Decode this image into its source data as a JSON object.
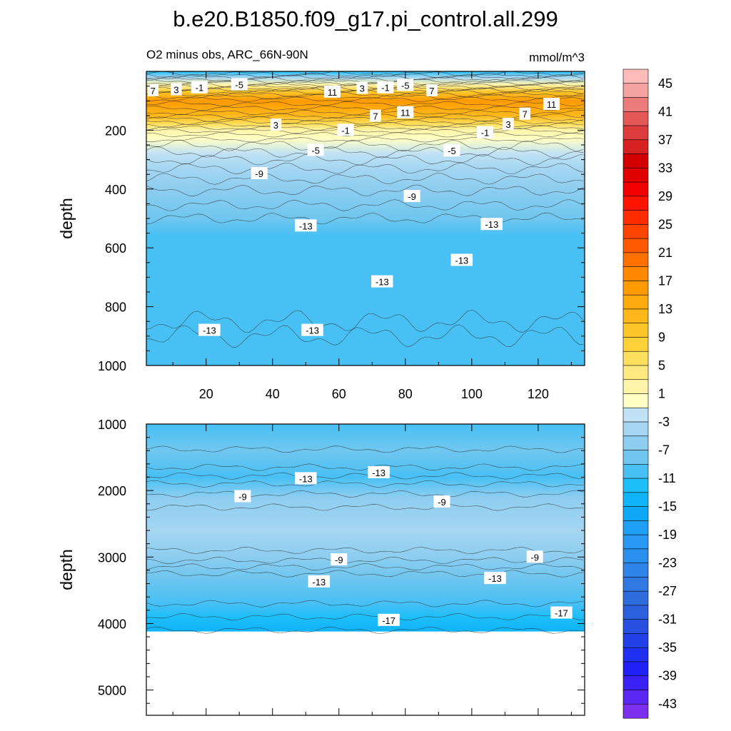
{
  "chart_data": [
    {
      "type": "contour",
      "panel": "upper",
      "title": "b.e20.B1850.f09_g17.pi_control.all.299",
      "left_subtitle": "O2 minus obs, ARC_66N-90N",
      "right_subtitle": "mmol/m^3",
      "xlabel": "",
      "ylabel": "depth",
      "xlim": [
        2,
        134
      ],
      "ylim": [
        1000,
        0
      ],
      "x_ticks": [
        "20",
        "40",
        "60",
        "80",
        "100",
        "120"
      ],
      "x_tick_values": [
        20,
        40,
        60,
        80,
        100,
        120
      ],
      "y_ticks": [
        "200",
        "400",
        "600",
        "800",
        "1000"
      ],
      "y_tick_values": [
        200,
        400,
        600,
        800,
        1000
      ],
      "depth_profile": [
        {
          "depth": 0,
          "value": -15
        },
        {
          "depth": 20,
          "value": -7
        },
        {
          "depth": 45,
          "value": -1
        },
        {
          "depth": 70,
          "value": 7
        },
        {
          "depth": 100,
          "value": 13
        },
        {
          "depth": 150,
          "value": 9
        },
        {
          "depth": 180,
          "value": 3
        },
        {
          "depth": 200,
          "value": -1
        },
        {
          "depth": 230,
          "value": -3
        },
        {
          "depth": 280,
          "value": -5
        },
        {
          "depth": 330,
          "value": -7
        },
        {
          "depth": 400,
          "value": -9
        },
        {
          "depth": 500,
          "value": -11
        },
        {
          "depth": 560,
          "value": -13
        },
        {
          "depth": 850,
          "value": -13
        },
        {
          "depth": 1000,
          "value": -12
        }
      ],
      "contour_labels": [
        {
          "text": "7",
          "x": 4,
          "depth": 65
        },
        {
          "text": "3",
          "x": 11,
          "depth": 62
        },
        {
          "text": "-1",
          "x": 18,
          "depth": 55
        },
        {
          "text": "-5",
          "x": 30,
          "depth": 45
        },
        {
          "text": "11",
          "x": 58,
          "depth": 70
        },
        {
          "text": "3",
          "x": 67,
          "depth": 57
        },
        {
          "text": "-1",
          "x": 74,
          "depth": 55
        },
        {
          "text": "-5",
          "x": 80,
          "depth": 47
        },
        {
          "text": "7",
          "x": 88,
          "depth": 65
        },
        {
          "text": "7",
          "x": 71,
          "depth": 152
        },
        {
          "text": "11",
          "x": 80,
          "depth": 140
        },
        {
          "text": "7",
          "x": 116,
          "depth": 145
        },
        {
          "text": "11",
          "x": 124,
          "depth": 112
        },
        {
          "text": "3",
          "x": 111,
          "depth": 180
        },
        {
          "text": "3",
          "x": 41,
          "depth": 182
        },
        {
          "text": "-1",
          "x": 62,
          "depth": 200
        },
        {
          "text": "-1",
          "x": 104,
          "depth": 208
        },
        {
          "text": "-5",
          "x": 53,
          "depth": 268
        },
        {
          "text": "-5",
          "x": 94,
          "depth": 270
        },
        {
          "text": "-9",
          "x": 36,
          "depth": 347
        },
        {
          "text": "-9",
          "x": 82,
          "depth": 425
        },
        {
          "text": "-13",
          "x": 50,
          "depth": 525
        },
        {
          "text": "-13",
          "x": 106,
          "depth": 520
        },
        {
          "text": "-13",
          "x": 97,
          "depth": 642
        },
        {
          "text": "-13",
          "x": 73,
          "depth": 715
        },
        {
          "text": "-13",
          "x": 21,
          "depth": 880
        },
        {
          "text": "-13",
          "x": 52,
          "depth": 880
        }
      ]
    },
    {
      "type": "contour",
      "panel": "lower",
      "xlabel": "",
      "ylabel": "depth",
      "xlim": [
        2,
        134
      ],
      "ylim": [
        5380,
        1000
      ],
      "data_bottom_depth": 4120,
      "y_ticks": [
        "1000",
        "2000",
        "3000",
        "4000",
        "5000"
      ],
      "y_tick_values": [
        1000,
        2000,
        3000,
        4000,
        5000
      ],
      "depth_profile": [
        {
          "depth": 1000,
          "value": -12
        },
        {
          "depth": 1400,
          "value": -11
        },
        {
          "depth": 1800,
          "value": -13
        },
        {
          "depth": 2100,
          "value": -9
        },
        {
          "depth": 2600,
          "value": -7
        },
        {
          "depth": 3000,
          "value": -9
        },
        {
          "depth": 3300,
          "value": -11
        },
        {
          "depth": 3700,
          "value": -13
        },
        {
          "depth": 3900,
          "value": -15
        },
        {
          "depth": 4120,
          "value": -17
        }
      ],
      "contour_labels": [
        {
          "text": "-13",
          "x": 50,
          "depth": 1820
        },
        {
          "text": "-13",
          "x": 72,
          "depth": 1730
        },
        {
          "text": "-9",
          "x": 31,
          "depth": 2090
        },
        {
          "text": "-9",
          "x": 91,
          "depth": 2170
        },
        {
          "text": "-9",
          "x": 60,
          "depth": 3040
        },
        {
          "text": "-9",
          "x": 119,
          "depth": 3000
        },
        {
          "text": "-13",
          "x": 54,
          "depth": 3370
        },
        {
          "text": "-13",
          "x": 107,
          "depth": 3320
        },
        {
          "text": "-17",
          "x": 75,
          "depth": 3950
        },
        {
          "text": "-17",
          "x": 127,
          "depth": 3840
        }
      ]
    }
  ],
  "colorbar": {
    "levels": [
      -45,
      -43,
      -41,
      -39,
      -37,
      -35,
      -33,
      -31,
      -29,
      -27,
      -25,
      -23,
      -21,
      -19,
      -17,
      -15,
      -13,
      -11,
      -9,
      -7,
      -5,
      -3,
      -1,
      1,
      3,
      5,
      7,
      9,
      11,
      13,
      15,
      17,
      19,
      21,
      23,
      25,
      27,
      29,
      31,
      33,
      35,
      37,
      39,
      41,
      43,
      45
    ],
    "labels": [
      "45",
      "41",
      "37",
      "33",
      "29",
      "25",
      "21",
      "17",
      "13",
      "9",
      "5",
      "1",
      "-3",
      "-7",
      "-11",
      "-15",
      "-19",
      "-23",
      "-27",
      "-31",
      "-35",
      "-39",
      "-43"
    ],
    "colors": [
      "#7d2ff0",
      "#5a28f2",
      "#3b22f4",
      "#2020f5",
      "#1f30f0",
      "#2440e8",
      "#2850e0",
      "#2c60dc",
      "#2e6cdc",
      "#3078e2",
      "#2e84e8",
      "#2a90ee",
      "#2898f2",
      "#20a0f4",
      "#12a8f8",
      "#10b4f8",
      "#1ebef8",
      "#48c0f4",
      "#70c6ef",
      "#8dcdf0",
      "#a5d6f2",
      "#c0e2f4",
      "#ffffc6",
      "#fff5aa",
      "#ffea82",
      "#ffe05e",
      "#ffd23a",
      "#ffc62a",
      "#ffb81c",
      "#ffaa10",
      "#ff9a00",
      "#ff8800",
      "#ff7200",
      "#ff5a00",
      "#ff4400",
      "#ff2c00",
      "#ff1400",
      "#f00000",
      "#e00000",
      "#d20000",
      "#d62222",
      "#dc3c3c",
      "#e45858",
      "#ec7c7c",
      "#f4a2a2",
      "#ffbaba"
    ]
  }
}
